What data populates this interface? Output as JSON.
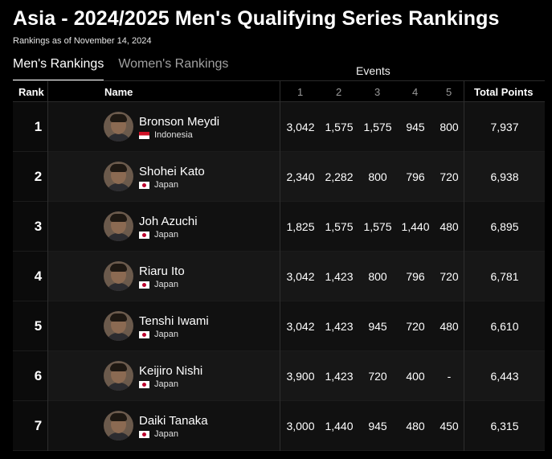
{
  "page": {
    "title": "Asia - 2024/2025 Men's Qualifying Series Rankings",
    "subtitle": "Rankings as of November 14, 2024"
  },
  "tabs": [
    {
      "label": "Men's Rankings",
      "active": true
    },
    {
      "label": "Women's Rankings",
      "active": false
    }
  ],
  "table": {
    "group_label": "Events",
    "headers": {
      "rank": "Rank",
      "name": "Name",
      "e1": "1",
      "e2": "2",
      "e3": "3",
      "e4": "4",
      "e5": "5",
      "total": "Total Points"
    },
    "rows": [
      {
        "rank": "1",
        "name": "Bronson Meydi",
        "country": "Indonesia",
        "flag": "id",
        "events": [
          "3,042",
          "1,575",
          "1,575",
          "945",
          "800"
        ],
        "total": "7,937"
      },
      {
        "rank": "2",
        "name": "Shohei Kato",
        "country": "Japan",
        "flag": "jp",
        "events": [
          "2,340",
          "2,282",
          "800",
          "796",
          "720"
        ],
        "total": "6,938"
      },
      {
        "rank": "3",
        "name": "Joh Azuchi",
        "country": "Japan",
        "flag": "jp",
        "events": [
          "1,825",
          "1,575",
          "1,575",
          "1,440",
          "480"
        ],
        "total": "6,895"
      },
      {
        "rank": "4",
        "name": "Riaru Ito",
        "country": "Japan",
        "flag": "jp",
        "events": [
          "3,042",
          "1,423",
          "800",
          "796",
          "720"
        ],
        "total": "6,781"
      },
      {
        "rank": "5",
        "name": "Tenshi Iwami",
        "country": "Japan",
        "flag": "jp",
        "events": [
          "3,042",
          "1,423",
          "945",
          "720",
          "480"
        ],
        "total": "6,610"
      },
      {
        "rank": "6",
        "name": "Keijiro Nishi",
        "country": "Japan",
        "flag": "jp",
        "events": [
          "3,900",
          "1,423",
          "720",
          "400",
          "-"
        ],
        "total": "6,443"
      },
      {
        "rank": "7",
        "name": "Daiki Tanaka",
        "country": "Japan",
        "flag": "jp",
        "events": [
          "3,000",
          "1,440",
          "945",
          "480",
          "450"
        ],
        "total": "6,315"
      }
    ]
  }
}
